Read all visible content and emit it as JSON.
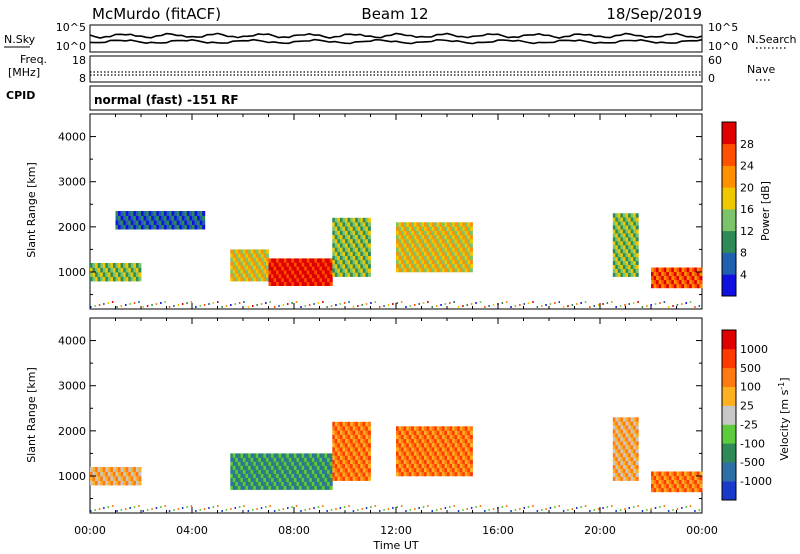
{
  "header": {
    "station": "McMurdo (fitACF)",
    "beam": "Beam 12",
    "date": "18/Sep/2019"
  },
  "top_panel": {
    "left_label": "N.Sky",
    "left_ticks": [
      "10^5",
      "10^0"
    ],
    "right_ticks": [
      "10^5",
      "10^0"
    ],
    "right_label": "N.Search"
  },
  "freq_panel": {
    "left_label_1": "Freq.",
    "left_label_2": "[MHz]",
    "left_ticks": [
      "18",
      "8"
    ],
    "right_ticks": [
      "60",
      "0"
    ],
    "right_label": "Nave"
  },
  "cpid_panel": {
    "label": "CPID",
    "value": "normal (fast) -151 RF"
  },
  "chart_data": [
    {
      "type": "heatmap",
      "title": "Power",
      "ylabel": "Slant Range [km]",
      "xlabel": "Time UT",
      "x_ticks": [
        "00:00",
        "04:00",
        "08:00",
        "12:00",
        "16:00",
        "20:00",
        "00:00"
      ],
      "y_ticks": [
        1000,
        2000,
        3000,
        4000
      ],
      "xlim_hours": [
        0,
        24
      ],
      "ylim_km": [
        180,
        4500
      ],
      "colorbar": {
        "label": "Power [dB]",
        "ticks": [
          "4",
          "8",
          "12",
          "16",
          "20",
          "24",
          "28"
        ],
        "colors": [
          "#1010e0",
          "#2060b0",
          "#2e8b57",
          "#7cc46a",
          "#f0c800",
          "#ff9000",
          "#ff5000",
          "#e00000"
        ]
      },
      "regions": [
        {
          "t0": 0.0,
          "t1": 2.0,
          "r0": 800,
          "r1": 1200,
          "level": 3
        },
        {
          "t0": 1.0,
          "t1": 4.5,
          "r0": 1950,
          "r1": 2350,
          "level": 1
        },
        {
          "t0": 5.5,
          "t1": 7.0,
          "r0": 800,
          "r1": 1500,
          "level": 4
        },
        {
          "t0": 7.0,
          "t1": 9.5,
          "r0": 700,
          "r1": 1300,
          "level": 7
        },
        {
          "t0": 9.5,
          "t1": 11.0,
          "r0": 900,
          "r1": 2200,
          "level": 3
        },
        {
          "t0": 12.0,
          "t1": 15.0,
          "r0": 1000,
          "r1": 2100,
          "level": 4
        },
        {
          "t0": 20.5,
          "t1": 21.5,
          "r0": 900,
          "r1": 2300,
          "level": 3
        },
        {
          "t0": 22.0,
          "t1": 24.0,
          "r0": 650,
          "r1": 1100,
          "level": 6
        }
      ]
    },
    {
      "type": "heatmap",
      "title": "Velocity",
      "ylabel": "Slant Range [km]",
      "xlabel": "Time UT",
      "x_ticks": [
        "00:00",
        "04:00",
        "08:00",
        "12:00",
        "16:00",
        "20:00",
        "00:00"
      ],
      "y_ticks": [
        1000,
        2000,
        3000,
        4000
      ],
      "xlim_hours": [
        0,
        24
      ],
      "ylim_km": [
        180,
        4500
      ],
      "colorbar": {
        "label": "Velocity [m s^-1]",
        "ticks": [
          "1000",
          "500",
          "100",
          "25",
          "-25",
          "-100",
          "-500",
          "-1000"
        ],
        "colors": [
          "#1a3acc",
          "#2f6fa8",
          "#2e8b57",
          "#5ccc3c",
          "#c8c8c8",
          "#ffb020",
          "#ff7a10",
          "#ff3a00",
          "#e00000"
        ]
      },
      "regions": [
        {
          "t0": 0.0,
          "t1": 2.0,
          "r0": 800,
          "r1": 1200,
          "level": 5
        },
        {
          "t0": 5.5,
          "t1": 9.5,
          "r0": 700,
          "r1": 1500,
          "level": 2
        },
        {
          "t0": 9.5,
          "t1": 11.0,
          "r0": 900,
          "r1": 2200,
          "level": 6
        },
        {
          "t0": 12.0,
          "t1": 15.0,
          "r0": 1000,
          "r1": 2100,
          "level": 6
        },
        {
          "t0": 20.5,
          "t1": 21.5,
          "r0": 900,
          "r1": 2300,
          "level": 5
        },
        {
          "t0": 22.0,
          "t1": 24.0,
          "r0": 650,
          "r1": 1100,
          "level": 6
        }
      ]
    }
  ]
}
